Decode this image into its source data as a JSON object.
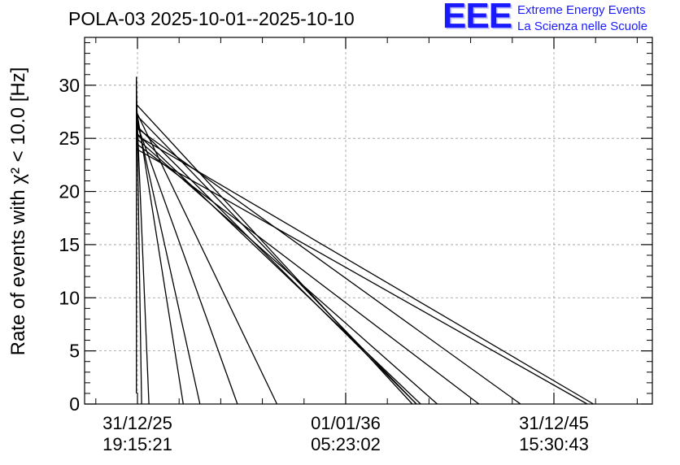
{
  "title": "POLA-03 2025-10-01--2025-10-10",
  "logo": {
    "mark": "EEE",
    "line1": "Extreme Energy Events",
    "line2": "La Scienza nelle Scuole",
    "color": "#1a1aff"
  },
  "chart_data": {
    "type": "line",
    "title": "POLA-03 2025-10-01--2025-10-10",
    "ylabel": "Rate of events with χ² < 10.0 [Hz]",
    "xlabel": "",
    "ylim": [
      0,
      34.5
    ],
    "yticks": [
      0,
      5,
      10,
      15,
      20,
      25,
      30
    ],
    "xticks": [
      {
        "date": "31/12/25",
        "time": "19:15:21"
      },
      {
        "date": "01/01/36",
        "time": "05:23:02"
      },
      {
        "date": "31/12/45",
        "time": "15:30:43"
      }
    ],
    "grid": true,
    "series": [
      {
        "points": [
          [
            2025.95,
            30.8
          ],
          [
            2025.95,
            1.0
          ]
        ]
      },
      {
        "points": [
          [
            2025.95,
            30.5
          ],
          [
            2026.2,
            0
          ]
        ]
      },
      {
        "points": [
          [
            2025.95,
            28.5
          ],
          [
            2026.55,
            0
          ]
        ]
      },
      {
        "points": [
          [
            2025.95,
            27.8
          ],
          [
            2028.2,
            0
          ]
        ]
      },
      {
        "points": [
          [
            2025.95,
            27.0
          ],
          [
            2029.0,
            0
          ]
        ]
      },
      {
        "points": [
          [
            2025.95,
            26.5
          ],
          [
            2030.8,
            0
          ]
        ]
      },
      {
        "points": [
          [
            2025.95,
            27.5
          ],
          [
            2032.7,
            0
          ]
        ]
      },
      {
        "points": [
          [
            2025.95,
            28.2
          ],
          [
            2039.2,
            0
          ]
        ]
      },
      {
        "points": [
          [
            2025.95,
            27.2
          ],
          [
            2039.4,
            0
          ]
        ]
      },
      {
        "points": [
          [
            2025.95,
            26.2
          ],
          [
            2039.4,
            0
          ]
        ]
      },
      {
        "points": [
          [
            2025.95,
            25.5
          ],
          [
            2039.6,
            0
          ]
        ]
      },
      {
        "points": [
          [
            2025.95,
            25.0
          ],
          [
            2040.4,
            0
          ]
        ]
      },
      {
        "points": [
          [
            2025.95,
            24.5
          ],
          [
            2042.4,
            0
          ]
        ]
      },
      {
        "points": [
          [
            2025.95,
            26.0
          ],
          [
            2044.4,
            0
          ]
        ]
      },
      {
        "points": [
          [
            2025.95,
            24.0
          ],
          [
            2047.6,
            0
          ]
        ]
      },
      {
        "points": [
          [
            2025.95,
            25.3
          ],
          [
            2047.9,
            0
          ]
        ]
      }
    ]
  }
}
